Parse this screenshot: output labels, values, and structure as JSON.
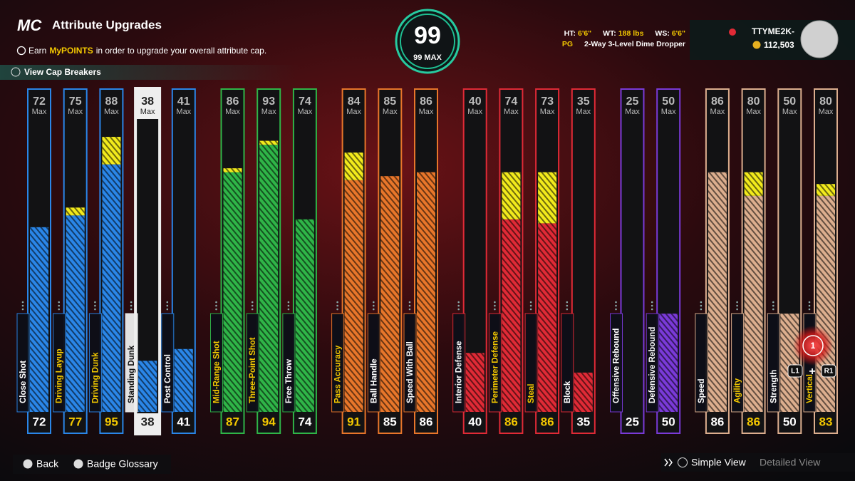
{
  "header": {
    "logo": "MC",
    "title": "Attribute Upgrades",
    "info": [
      "Earn",
      "MyPOINTS",
      "in order to upgrade your overall attribute cap."
    ],
    "cap_breakers": "View Cap Breakers"
  },
  "overall": {
    "value": 99,
    "max_label": "99 MAX"
  },
  "player": {
    "ht_label": "HT:",
    "ht": "6'6\"",
    "wt_label": "WT:",
    "wt": "188 lbs",
    "ws_label": "WS:",
    "ws": "6'6\"",
    "position": "PG",
    "archetype": "2-Way 3-Level Dime Dropper",
    "username": "TTYME2K-",
    "coins": "112,503"
  },
  "max_label": "Max",
  "groups": [
    {
      "color": "#2a86e8",
      "attributes": [
        {
          "name": "Close Shot",
          "max": 72,
          "value": 72
        },
        {
          "name": "Driving Layup",
          "max": 75,
          "value": 77
        },
        {
          "name": "Driving Dunk",
          "max": 88,
          "value": 95
        },
        {
          "name": "Standing Dunk",
          "max": 38,
          "value": 38,
          "selected": true
        },
        {
          "name": "Post Control",
          "max": 41,
          "value": 41
        }
      ]
    },
    {
      "color": "#2fb548",
      "attributes": [
        {
          "name": "Mid-Range Shot",
          "max": 86,
          "value": 87
        },
        {
          "name": "Three-Point Shot",
          "max": 93,
          "value": 94
        },
        {
          "name": "Free Throw",
          "max": 74,
          "value": 74
        }
      ]
    },
    {
      "color": "#e8762a",
      "attributes": [
        {
          "name": "Pass Accuracy",
          "max": 84,
          "value": 91
        },
        {
          "name": "Ball Handle",
          "max": 85,
          "value": 85
        },
        {
          "name": "Speed With Ball",
          "max": 86,
          "value": 86
        }
      ]
    },
    {
      "color": "#e02a36",
      "attributes": [
        {
          "name": "Interior Defense",
          "max": 40,
          "value": 40
        },
        {
          "name": "Perimeter Defense",
          "max": 74,
          "value": 86
        },
        {
          "name": "Steal",
          "max": 73,
          "value": 86
        },
        {
          "name": "Block",
          "max": 35,
          "value": 35
        }
      ]
    },
    {
      "color": "#7a3ad8",
      "attributes": [
        {
          "name": "Offensive Rebound",
          "max": 25,
          "value": 25
        },
        {
          "name": "Defensive Rebound",
          "max": 50,
          "value": 50
        }
      ]
    },
    {
      "color": "#dcae8e",
      "attributes": [
        {
          "name": "Speed",
          "max": 86,
          "value": 86
        },
        {
          "name": "Agility",
          "max": 80,
          "value": 86
        },
        {
          "name": "Strength",
          "max": 50,
          "value": 50
        },
        {
          "name": "Vertical",
          "max": 80,
          "value": 83
        }
      ]
    }
  ],
  "vertical_controls": {
    "badge": 1,
    "left": "L1",
    "plus": "+",
    "right": "R1"
  },
  "footer": {
    "back": "Back",
    "glossary": "Badge Glossary",
    "simple": "Simple View",
    "detailed": "Detailed View"
  }
}
